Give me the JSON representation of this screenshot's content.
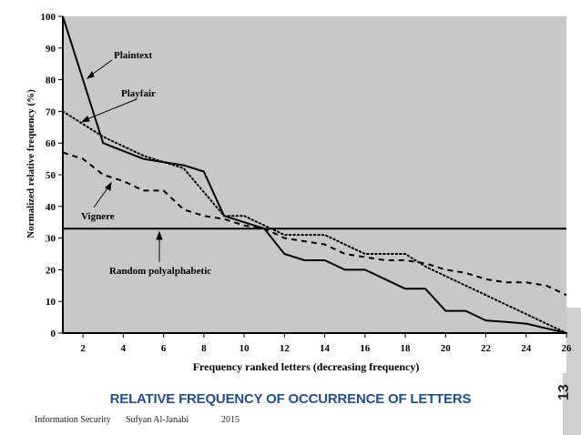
{
  "chart_data": {
    "type": "line",
    "title": "",
    "xlabel": "Frequency ranked letters (decreasing frequency)",
    "ylabel": "Normalized relative frequency (%)",
    "xlim": [
      1,
      26
    ],
    "ylim": [
      0,
      100
    ],
    "xticks": [
      2,
      4,
      6,
      8,
      10,
      12,
      14,
      16,
      18,
      20,
      22,
      24,
      26
    ],
    "yticks": [
      0,
      10,
      20,
      30,
      40,
      50,
      60,
      70,
      80,
      90,
      100
    ],
    "series": [
      {
        "name": "Plaintext",
        "style": "solid",
        "x": [
          1,
          3,
          5,
          7,
          8,
          9,
          10,
          11,
          12,
          13,
          14,
          15,
          16,
          17,
          18,
          19,
          20,
          21,
          22,
          23,
          24,
          25,
          26
        ],
        "y": [
          100,
          60,
          55,
          53,
          51,
          37,
          35,
          33,
          25,
          23,
          23,
          20,
          20,
          17,
          14,
          14,
          7,
          7,
          4,
          3.5,
          3,
          1.5,
          0
        ]
      },
      {
        "name": "Playfair",
        "style": "dotted",
        "x": [
          1,
          3,
          5,
          7,
          9,
          10,
          11,
          12,
          13,
          14,
          15,
          16,
          17,
          18,
          19,
          20,
          21,
          22,
          23,
          24,
          25,
          26
        ],
        "y": [
          70,
          62,
          56,
          52,
          37,
          37,
          34,
          31,
          31,
          31,
          28,
          25,
          25,
          25,
          21,
          18,
          15,
          12,
          9,
          6,
          3,
          0
        ]
      },
      {
        "name": "Vignere",
        "style": "dashed",
        "x": [
          1,
          2,
          3,
          4,
          5,
          6,
          7,
          8,
          9,
          10,
          11,
          12,
          13,
          14,
          15,
          16,
          17,
          18,
          19,
          20,
          21,
          22,
          23,
          24,
          25,
          26
        ],
        "y": [
          57,
          55,
          50,
          48,
          45,
          45,
          39,
          37,
          36,
          34,
          33,
          30,
          29,
          28,
          25,
          24,
          23,
          23,
          22,
          20,
          19,
          17,
          16,
          16,
          15,
          12
        ]
      },
      {
        "name": "Random polyalphabetic",
        "style": "solid",
        "x": [
          1,
          26
        ],
        "y": [
          33,
          33
        ]
      }
    ],
    "annotations": [
      "Plaintext",
      "Playfair",
      "Vignere",
      "Random polyalphabetic"
    ]
  },
  "caption": "RELATIVE FREQUENCY OF OCCURRENCE OF LETTERS",
  "footer": {
    "course": "Information Security",
    "author": "Sufyan Al-Janabi",
    "year": "2015"
  },
  "slide_number": "13",
  "colors": {
    "plot_bg": "#c8c8c8",
    "line": "#000000",
    "caption": "#1f4e9c"
  }
}
